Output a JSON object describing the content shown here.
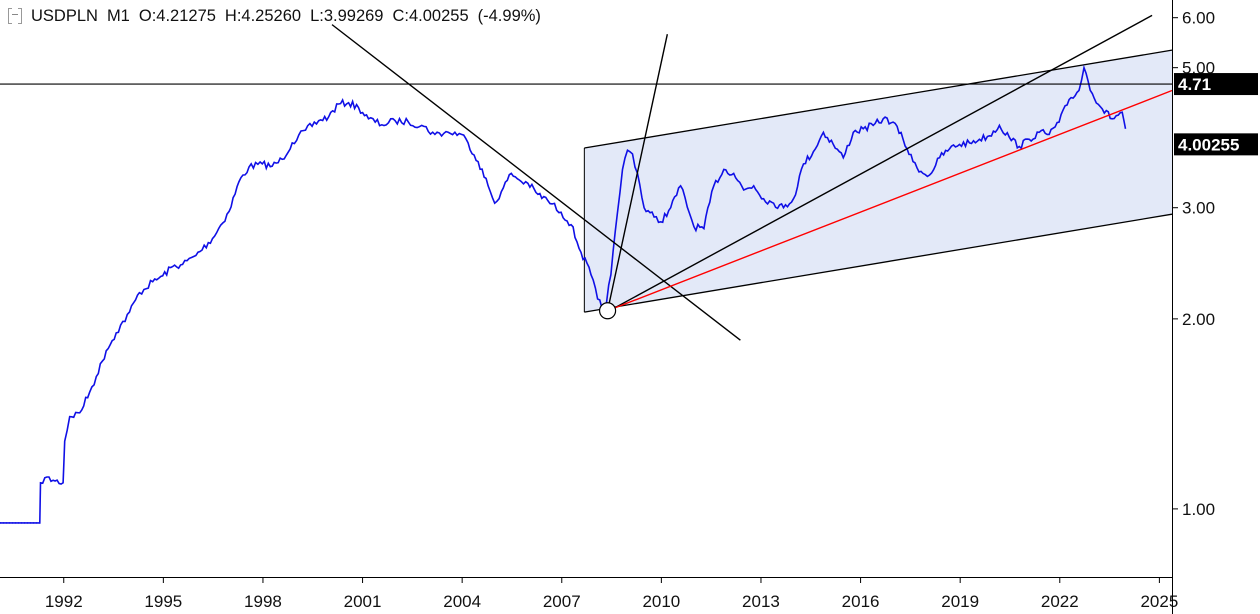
{
  "legend": {
    "toggle_icon": "collapse-toggle-icon",
    "symbol": "USDPLN",
    "timeframe": "M1",
    "open": "O:4.21275",
    "high": "H:4.25260",
    "low": "L:3.99269",
    "close": "C:4.00255",
    "change": "(-4.99%)"
  },
  "colors": {
    "series": "#1010e6",
    "channel_fill": "#e3e9f8",
    "support_line": "#ff0000",
    "drawing": "#000000",
    "price_badge": "#000000"
  },
  "chart_data": {
    "type": "line",
    "title": "USDPLN M1",
    "y_scale": "log",
    "ylim": [
      0.78,
      6.4
    ],
    "xlim": [
      1990.1,
      2025.4
    ],
    "x_ticks": [
      "1992",
      "1995",
      "1998",
      "2001",
      "2004",
      "2007",
      "2010",
      "2013",
      "2016",
      "2019",
      "2022",
      "2025"
    ],
    "y_ticks": [
      "1.00",
      "2.00",
      "3.00",
      "5.00",
      "6.00"
    ],
    "last_price_label": "4.00255",
    "horizontal_line_label": "4.71",
    "horizontal_line_value": 4.71,
    "series": [
      {
        "x": [
          1990.1,
          1991.3,
          1991.32,
          1991.45,
          1991.7,
          1992.0,
          1992.05,
          1992.2,
          1992.5,
          1992.8,
          1993.0,
          1993.3,
          1993.6,
          1994.0,
          1994.3,
          1994.7,
          1995.0,
          1995.3,
          1995.6,
          1996.0,
          1996.5,
          1997.0,
          1997.3,
          1997.6,
          1998.0,
          1998.3,
          1998.6,
          1998.9,
          1999.3,
          1999.7,
          2000.0,
          2000.3,
          2000.6,
          2000.9,
          2001.2,
          2001.6,
          2002.0,
          2002.4,
          2002.8,
          2003.2,
          2003.6,
          2004.0,
          2004.2,
          2004.5,
          2004.8,
          2005.0,
          2005.2,
          2005.5,
          2005.8,
          2006.0,
          2006.3,
          2006.6,
          2007.0,
          2007.3,
          2007.6,
          2007.9,
          2008.1,
          2008.3,
          2008.5,
          2008.7,
          2008.85,
          2009.0,
          2009.15,
          2009.3,
          2009.5,
          2009.8,
          2010.0,
          2010.3,
          2010.6,
          2011.0,
          2011.3,
          2011.6,
          2011.9,
          2012.2,
          2012.5,
          2012.8,
          2013.1,
          2013.4,
          2013.7,
          2014.0,
          2014.3,
          2014.6,
          2014.9,
          2015.2,
          2015.5,
          2015.8,
          2016.1,
          2016.4,
          2016.7,
          2017.0,
          2017.3,
          2017.6,
          2017.9,
          2018.1,
          2018.4,
          2018.7,
          2019.0,
          2019.3,
          2019.6,
          2019.9,
          2020.2,
          2020.5,
          2020.8,
          2021.1,
          2021.4,
          2021.7,
          2022.0,
          2022.3,
          2022.6,
          2022.75,
          2023.0,
          2023.3,
          2023.6,
          2023.9,
          2024.0
        ],
        "values": [
          0.95,
          0.95,
          1.1,
          1.12,
          1.11,
          1.1,
          1.28,
          1.4,
          1.42,
          1.53,
          1.62,
          1.78,
          1.9,
          2.05,
          2.2,
          2.29,
          2.34,
          2.42,
          2.44,
          2.52,
          2.68,
          2.96,
          3.3,
          3.48,
          3.52,
          3.49,
          3.58,
          3.8,
          3.98,
          4.12,
          4.18,
          4.38,
          4.4,
          4.32,
          4.15,
          4.06,
          4.12,
          4.1,
          4.05,
          3.92,
          3.95,
          3.92,
          3.8,
          3.55,
          3.25,
          3.05,
          3.18,
          3.4,
          3.3,
          3.28,
          3.15,
          3.08,
          2.95,
          2.82,
          2.55,
          2.35,
          2.15,
          2.05,
          2.35,
          2.95,
          3.45,
          3.7,
          3.65,
          3.4,
          3.0,
          2.9,
          2.85,
          3.0,
          3.25,
          2.8,
          2.78,
          3.25,
          3.45,
          3.4,
          3.2,
          3.25,
          3.1,
          3.05,
          3.0,
          3.1,
          3.52,
          3.68,
          3.95,
          3.78,
          3.6,
          3.95,
          4.0,
          4.05,
          4.15,
          4.1,
          3.85,
          3.55,
          3.4,
          3.38,
          3.6,
          3.72,
          3.78,
          3.8,
          3.85,
          3.9,
          4.05,
          3.88,
          3.75,
          3.85,
          3.95,
          3.92,
          4.1,
          4.45,
          4.6,
          5.0,
          4.55,
          4.3,
          4.15,
          4.25,
          4.0
        ]
      }
    ],
    "annotations": [
      {
        "kind": "trendline",
        "color": "black",
        "from": [
          2000.1,
          5.85
        ],
        "to": [
          2012.4,
          1.85
        ]
      },
      {
        "kind": "trendline",
        "color": "black",
        "from": [
          2008.4,
          2.06
        ],
        "to": [
          2010.2,
          5.65
        ]
      },
      {
        "kind": "trendline",
        "color": "black",
        "from": [
          2008.6,
          2.08
        ],
        "to": [
          2024.8,
          6.05
        ]
      },
      {
        "kind": "trendline",
        "color": "red",
        "from": [
          2008.4,
          2.06
        ],
        "to": [
          2025.4,
          4.6
        ]
      },
      {
        "kind": "channel",
        "upper_from": [
          2007.7,
          3.73
        ],
        "upper_to": [
          2025.4,
          5.33
        ],
        "lower_from": [
          2007.7,
          2.05
        ],
        "lower_to": [
          2025.4,
          2.93
        ]
      },
      {
        "kind": "marker",
        "shape": "circle",
        "at": [
          2008.4,
          2.06
        ]
      }
    ]
  }
}
